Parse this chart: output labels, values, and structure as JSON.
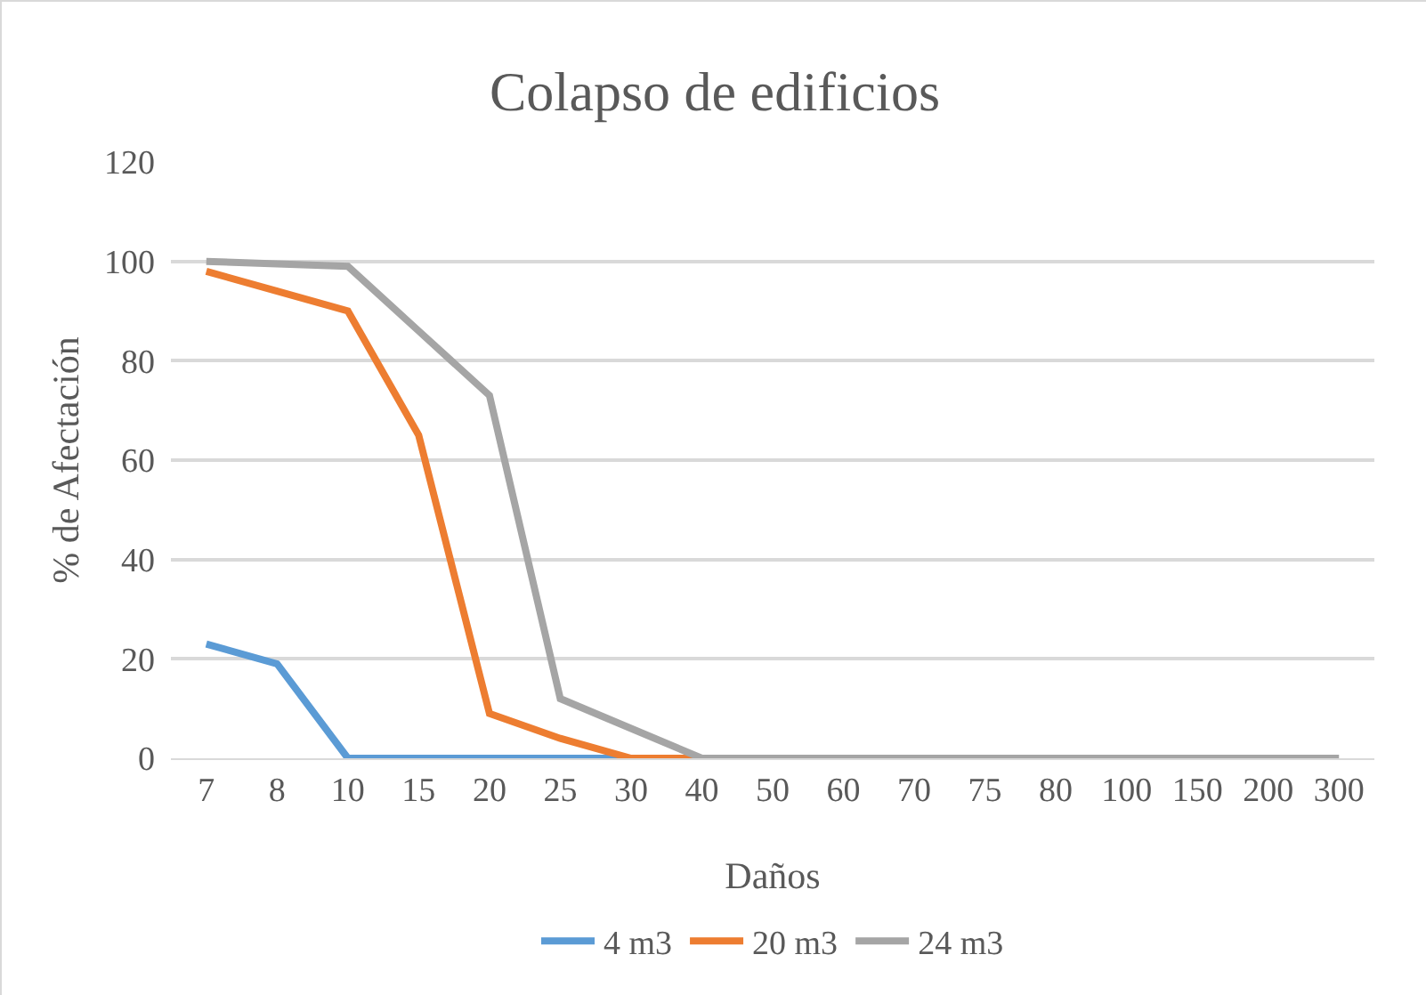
{
  "chart_data": {
    "type": "line",
    "title": "Colapso de edificios",
    "xlabel": "Daños",
    "ylabel": "% de Afectación",
    "categories": [
      "7",
      "8",
      "10",
      "15",
      "20",
      "25",
      "30",
      "40",
      "50",
      "60",
      "70",
      "75",
      "80",
      "100",
      "150",
      "200",
      "300"
    ],
    "series": [
      {
        "name": "4 m3",
        "color": "#5b9bd5",
        "values": [
          23,
          19,
          0,
          0,
          0,
          0,
          0,
          null,
          null,
          null,
          null,
          null,
          null,
          null,
          null,
          null,
          null
        ]
      },
      {
        "name": "20 m3",
        "color": "#ed7d31",
        "values": [
          98,
          94,
          90,
          65,
          9,
          4,
          0,
          0,
          null,
          null,
          null,
          null,
          null,
          null,
          null,
          null,
          null
        ]
      },
      {
        "name": "24 m3",
        "color": "#a5a5a5",
        "values": [
          100,
          99.5,
          99,
          86,
          73,
          12,
          6,
          0,
          0,
          0,
          0,
          0,
          0,
          0,
          0,
          0,
          0
        ]
      }
    ],
    "ylim": [
      0,
      120
    ],
    "yticks": [
      0,
      20,
      40,
      60,
      80,
      100,
      120
    ],
    "grid": "y",
    "legend": "bottom",
    "marker": "none",
    "line_style": "solid"
  }
}
